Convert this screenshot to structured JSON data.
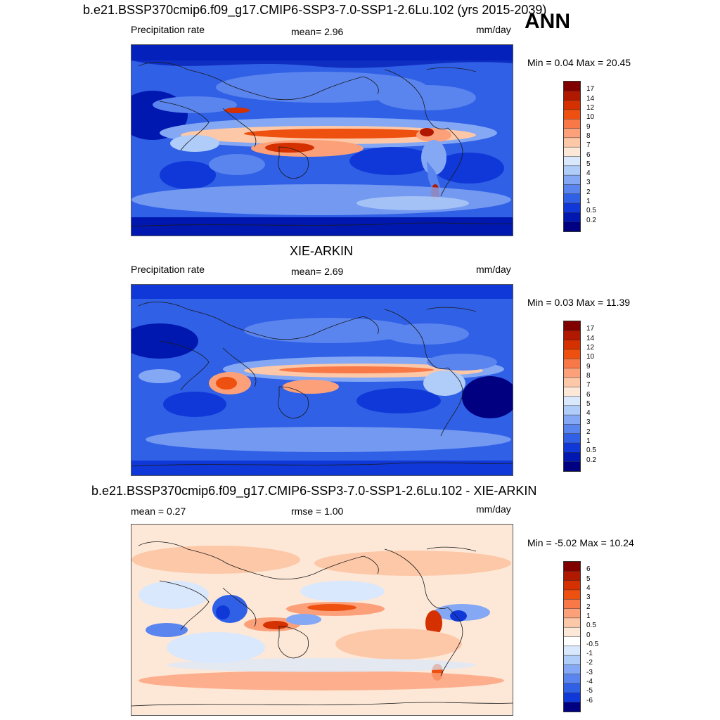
{
  "season": "ANN",
  "panels": [
    {
      "id": "model",
      "title": "b.e21.BSSP370cmip6.f09_g17.CMIP6-SSP3-7.0-SSP1-2.6Lu.102 (yrs 2015-2039)",
      "left_label": "Precipitation rate",
      "center_label": "mean=   2.96",
      "units": "mm/day",
      "minmax": "Min =   0.04 Max =  20.45",
      "type": "abs",
      "colorbar_labels": [
        "17",
        "14",
        "12",
        "10",
        "9",
        "8",
        "7",
        "6",
        "5",
        "4",
        "3",
        "2",
        "1",
        "0.5",
        "0.2"
      ]
    },
    {
      "id": "obs",
      "title": "XIE-ARKIN",
      "left_label": "Precipitation rate",
      "center_label": "mean=   2.69",
      "units": "mm/day",
      "minmax": "Min =   0.03 Max =  11.39",
      "type": "abs",
      "colorbar_labels": [
        "17",
        "14",
        "12",
        "10",
        "9",
        "8",
        "7",
        "6",
        "5",
        "4",
        "3",
        "2",
        "1",
        "0.5",
        "0.2"
      ]
    },
    {
      "id": "diff",
      "title": "b.e21.BSSP370cmip6.f09_g17.CMIP6-SSP3-7.0-SSP1-2.6Lu.102 - XIE-ARKIN",
      "left_label": "mean =   0.27",
      "center_label": "rmse =   1.00",
      "units": "mm/day",
      "minmax": "Min =  -5.02 Max =  10.24",
      "type": "diff",
      "colorbar_labels": [
        "6",
        "5",
        "4",
        "3",
        "2",
        "1",
        "0.5",
        "0",
        "-0.5",
        "-1",
        "-2",
        "-3",
        "-4",
        "-5",
        "-6"
      ]
    }
  ],
  "colors": {
    "abs_scale": [
      "#800000",
      "#b01800",
      "#d43000",
      "#ee5010",
      "#f87848",
      "#fca07a",
      "#fdc8a8",
      "#fde8d8",
      "#d9e8fc",
      "#b0ccf8",
      "#85a8f4",
      "#5a84ee",
      "#3060e6",
      "#1038d8",
      "#0018b0",
      "#000080"
    ],
    "diff_scale": [
      "#800000",
      "#b01800",
      "#d43000",
      "#ee5010",
      "#f87848",
      "#fca07a",
      "#fdc8a8",
      "#fde8d8",
      "#ffffff",
      "#d9e8fc",
      "#b0ccf8",
      "#85a8f4",
      "#5a84ee",
      "#3060e6",
      "#1038d8",
      "#000080"
    ]
  }
}
